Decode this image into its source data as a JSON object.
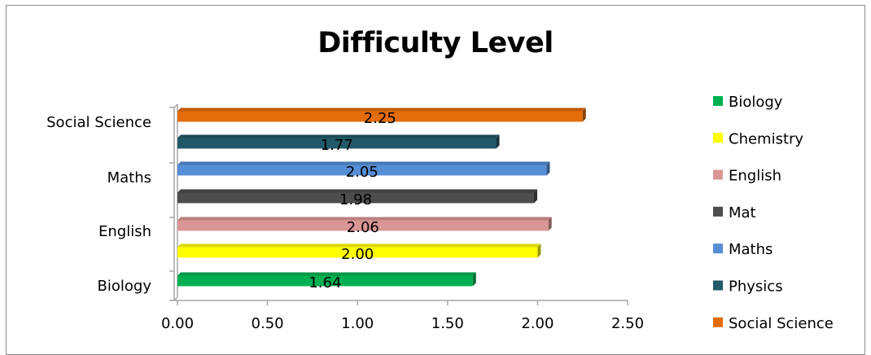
{
  "chart_data": {
    "type": "bar",
    "orientation": "horizontal",
    "title": "Difficulty Level",
    "xlim": [
      0,
      2.5
    ],
    "x_ticks": [
      "0.00",
      "0.50",
      "1.00",
      "1.50",
      "2.00",
      "2.50"
    ],
    "y_tick_labels": [
      "Biology",
      "English",
      "Maths",
      "Social Science"
    ],
    "legend_position": "right",
    "series": [
      {
        "name": "Biology",
        "value": 1.64,
        "label": "1.64",
        "color": "#00b050"
      },
      {
        "name": "Chemistry",
        "value": 2.0,
        "label": "2.00",
        "color": "#ffff00"
      },
      {
        "name": "English",
        "value": 2.06,
        "label": "2.06",
        "color": "#da9694"
      },
      {
        "name": "Mat",
        "value": 1.98,
        "label": "1.98",
        "color": "#4d4d4d"
      },
      {
        "name": "Maths",
        "value": 2.05,
        "label": "2.05",
        "color": "#558ed5"
      },
      {
        "name": "Physics",
        "value": 1.77,
        "label": "1.77",
        "color": "#215968"
      },
      {
        "name": "Social Science",
        "value": 2.25,
        "label": "2.25",
        "color": "#e46c0a"
      }
    ]
  }
}
